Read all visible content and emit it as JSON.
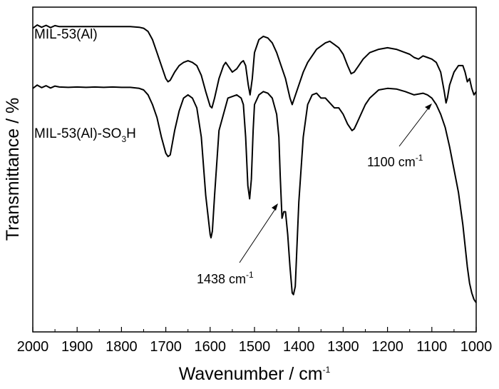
{
  "chart_data": {
    "type": "line",
    "title": "",
    "xlabel": "Wavenumber / cm",
    "xlabel_sup": "-1",
    "ylabel": "Transmittance / %",
    "xlim": [
      2000,
      1000
    ],
    "x_reversed": true,
    "ylim": [
      0,
      1
    ],
    "y_ticks_shown": false,
    "grid": false,
    "legend": "none",
    "x_ticks": [
      2000,
      1900,
      1800,
      1700,
      1600,
      1500,
      1400,
      1300,
      1200,
      1100,
      1000
    ],
    "series": [
      {
        "name": "MIL-53(Al)",
        "label_text": "MIL-53(Al)",
        "label_sub": "",
        "label_tail": "",
        "color": "#000000",
        "x": [
          2000,
          1990,
          1980,
          1970,
          1960,
          1950,
          1940,
          1920,
          1900,
          1880,
          1860,
          1840,
          1820,
          1800,
          1780,
          1760,
          1750,
          1740,
          1730,
          1720,
          1710,
          1700,
          1695,
          1690,
          1680,
          1670,
          1660,
          1650,
          1640,
          1630,
          1620,
          1610,
          1600,
          1596,
          1590,
          1580,
          1570,
          1565,
          1560,
          1550,
          1540,
          1530,
          1525,
          1520,
          1514,
          1510,
          1505,
          1500,
          1490,
          1480,
          1470,
          1460,
          1450,
          1440,
          1430,
          1420,
          1415,
          1410,
          1400,
          1390,
          1380,
          1360,
          1340,
          1330,
          1320,
          1310,
          1300,
          1290,
          1282,
          1275,
          1265,
          1255,
          1240,
          1220,
          1200,
          1180,
          1160,
          1150,
          1140,
          1130,
          1120,
          1110,
          1100,
          1090,
          1080,
          1072,
          1068,
          1065,
          1060,
          1050,
          1040,
          1030,
          1025,
          1020,
          1015,
          1010,
          1005,
          1000
        ],
        "y": [
          0.935,
          0.945,
          0.938,
          0.944,
          0.937,
          0.943,
          0.94,
          0.94,
          0.94,
          0.94,
          0.94,
          0.94,
          0.94,
          0.94,
          0.94,
          0.938,
          0.935,
          0.925,
          0.9,
          0.86,
          0.82,
          0.78,
          0.77,
          0.775,
          0.8,
          0.82,
          0.83,
          0.835,
          0.83,
          0.82,
          0.79,
          0.74,
          0.695,
          0.69,
          0.72,
          0.78,
          0.82,
          0.83,
          0.82,
          0.8,
          0.81,
          0.83,
          0.835,
          0.82,
          0.76,
          0.73,
          0.78,
          0.86,
          0.9,
          0.91,
          0.905,
          0.89,
          0.86,
          0.82,
          0.78,
          0.72,
          0.7,
          0.72,
          0.76,
          0.8,
          0.83,
          0.87,
          0.89,
          0.895,
          0.885,
          0.875,
          0.855,
          0.82,
          0.795,
          0.8,
          0.82,
          0.84,
          0.86,
          0.87,
          0.875,
          0.87,
          0.86,
          0.855,
          0.845,
          0.84,
          0.85,
          0.845,
          0.84,
          0.83,
          0.8,
          0.74,
          0.705,
          0.72,
          0.76,
          0.8,
          0.82,
          0.82,
          0.8,
          0.77,
          0.78,
          0.75,
          0.73,
          0.74
        ]
      },
      {
        "name": "MIL-53(Al)-SO3H",
        "label_text": "MIL-53(Al)-SO",
        "label_sub": "3",
        "label_tail": "H",
        "color": "#000000",
        "x": [
          2000,
          1990,
          1980,
          1970,
          1960,
          1950,
          1940,
          1920,
          1900,
          1880,
          1860,
          1840,
          1820,
          1800,
          1780,
          1760,
          1750,
          1740,
          1730,
          1720,
          1710,
          1700,
          1695,
          1690,
          1680,
          1670,
          1660,
          1650,
          1640,
          1630,
          1620,
          1610,
          1600,
          1598,
          1595,
          1590,
          1580,
          1560,
          1540,
          1530,
          1525,
          1520,
          1515,
          1511,
          1507,
          1503,
          1500,
          1490,
          1480,
          1470,
          1460,
          1450,
          1445,
          1442,
          1438,
          1434,
          1430,
          1425,
          1420,
          1415,
          1412,
          1408,
          1400,
          1390,
          1380,
          1370,
          1360,
          1350,
          1340,
          1330,
          1320,
          1310,
          1300,
          1290,
          1280,
          1275,
          1270,
          1260,
          1250,
          1240,
          1220,
          1200,
          1180,
          1160,
          1140,
          1120,
          1110,
          1100,
          1090,
          1080,
          1070,
          1060,
          1050,
          1040,
          1030,
          1020,
          1015,
          1010,
          1005,
          1000
        ],
        "y": [
          0.75,
          0.76,
          0.752,
          0.758,
          0.751,
          0.757,
          0.754,
          0.753,
          0.754,
          0.753,
          0.754,
          0.753,
          0.754,
          0.753,
          0.753,
          0.75,
          0.745,
          0.73,
          0.7,
          0.66,
          0.6,
          0.55,
          0.54,
          0.545,
          0.62,
          0.68,
          0.72,
          0.73,
          0.72,
          0.69,
          0.6,
          0.42,
          0.3,
          0.29,
          0.31,
          0.42,
          0.62,
          0.72,
          0.73,
          0.72,
          0.7,
          0.6,
          0.45,
          0.41,
          0.47,
          0.62,
          0.7,
          0.73,
          0.74,
          0.735,
          0.72,
          0.67,
          0.6,
          0.48,
          0.35,
          0.37,
          0.37,
          0.3,
          0.2,
          0.12,
          0.115,
          0.14,
          0.4,
          0.6,
          0.7,
          0.73,
          0.735,
          0.72,
          0.72,
          0.705,
          0.69,
          0.69,
          0.67,
          0.64,
          0.62,
          0.625,
          0.64,
          0.67,
          0.7,
          0.72,
          0.745,
          0.75,
          0.748,
          0.74,
          0.73,
          0.735,
          0.73,
          0.72,
          0.7,
          0.67,
          0.63,
          0.57,
          0.5,
          0.43,
          0.33,
          0.2,
          0.15,
          0.12,
          0.1,
          0.09
        ]
      }
    ],
    "annotations": [
      {
        "text": "1438 cm",
        "sup": "-1",
        "target_x": 1438,
        "target_y": 0.36
      },
      {
        "text": "1100 cm",
        "sup": "-1",
        "target_x": 1095,
        "target_y": 0.725
      }
    ]
  }
}
